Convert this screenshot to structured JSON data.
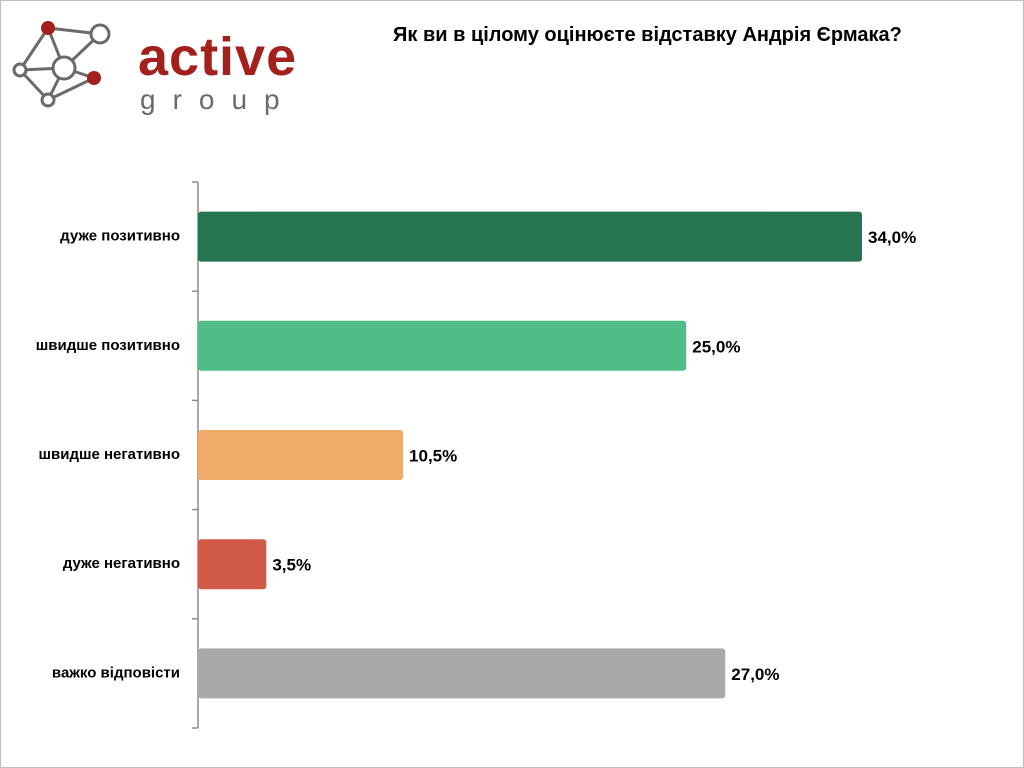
{
  "logo": {
    "word": "active",
    "sub": "group"
  },
  "title": "Як ви в цілому оцінюєте відставку Андрія Єрмака?",
  "colors": {
    "logo_red": "#a3201d",
    "logo_gray": "#6a6a6a",
    "axis": "#8c8c8c"
  },
  "chart_data": {
    "type": "bar",
    "orientation": "horizontal",
    "title": "Як ви в цілому оцінюєте відставку Андрія Єрмака?",
    "categories": [
      "дуже позитивно",
      "швидше позитивно",
      "швидше негативно",
      "дуже негативно",
      "важко відповісти"
    ],
    "values": [
      34.0,
      25.0,
      10.5,
      3.5,
      27.0
    ],
    "value_labels": [
      "34,0%",
      "25,0%",
      "10,5%",
      "3,5%",
      "27,0%"
    ],
    "bar_colors": [
      "#267550",
      "#50bd86",
      "#f0aa69",
      "#d05b48",
      "#a9a9a9"
    ],
    "xlim": [
      0,
      34
    ],
    "grid": false,
    "legend": "none"
  }
}
